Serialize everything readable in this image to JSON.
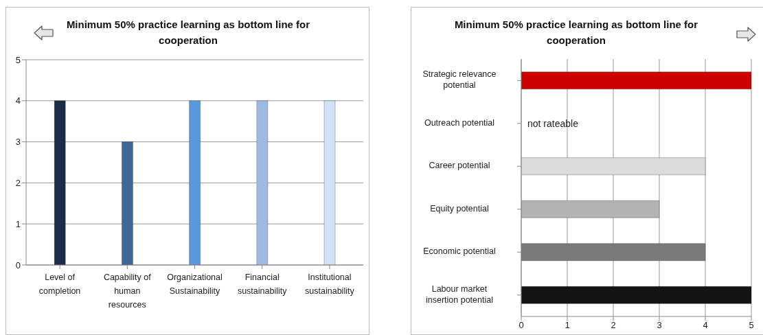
{
  "chart_data": [
    {
      "type": "bar",
      "title": "Minimum 50% practice learning as bottom line for cooperation",
      "categories": [
        "Level of completion",
        "Capability of human resources",
        "Organizational Sustainability",
        "Financial sustainability",
        "Institutional sustainability"
      ],
      "values": [
        4,
        3,
        4,
        4,
        4
      ],
      "colors": [
        "#1b2c48",
        "#3e679a",
        "#5b97dc",
        "#9dbbe0",
        "#cfe2f8"
      ],
      "ylim": [
        0,
        5
      ],
      "yticks": [
        0,
        1,
        2,
        3,
        4,
        5
      ],
      "grid": "y",
      "legend": false
    },
    {
      "type": "bar",
      "orientation": "horizontal",
      "title": "Minimum 50% practice learning as bottom line for cooperation",
      "categories": [
        "Strategic relevance potential",
        "Outreach potential",
        "Career potential",
        "Equity potential",
        "Economic potential",
        "Labour market insertion potential"
      ],
      "values": [
        5,
        null,
        4,
        3,
        4,
        5
      ],
      "colors": [
        "#cc0000",
        null,
        "#dcdcdc",
        "#b3b3b3",
        "#7a7a7a",
        "#141414"
      ],
      "xlim": [
        0,
        5
      ],
      "xticks": [
        0,
        1,
        2,
        3,
        4,
        5
      ],
      "grid": "x",
      "legend": false,
      "annotations": [
        "not rateable"
      ]
    }
  ]
}
